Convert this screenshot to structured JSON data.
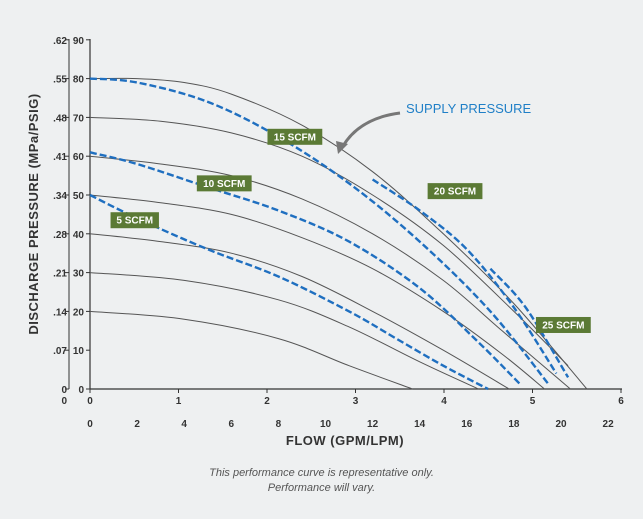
{
  "chart_data": {
    "type": "line",
    "title": "",
    "ylabel": "DISCHARGE PRESSURE (MPa/PSIG)",
    "xlabel": "FLOW (GPM/LPM)",
    "y_psig_ticks": [
      "0",
      "10",
      "20",
      "30",
      "40",
      "50",
      "60",
      "70",
      "80",
      "90"
    ],
    "y_mpa_ticks": [
      "0",
      ".07",
      ".14",
      ".21",
      ".28",
      ".34",
      ".41",
      ".48",
      ".55",
      ".62"
    ],
    "x_gpm_ticks": [
      "0",
      "2",
      "4",
      "6",
      "8",
      "10",
      "12",
      "14",
      "16",
      "18",
      "20",
      "22"
    ],
    "x_lpm_ticks": [
      "0",
      "1",
      "2",
      "3",
      "4",
      "5",
      "6"
    ],
    "xlim_gpm": [
      0,
      23
    ],
    "ylim_psig": [
      0,
      90
    ],
    "grid": false,
    "performance_curves": {
      "color": "#555555",
      "series": [
        {
          "x": [
            0,
            4,
            8,
            11,
            13.7
          ],
          "y": [
            20,
            18,
            13,
            6,
            0
          ]
        },
        {
          "x": [
            0,
            4,
            8,
            11,
            14,
            16.5
          ],
          "y": [
            30,
            28,
            23,
            16,
            7,
            0
          ]
        },
        {
          "x": [
            0,
            3,
            6,
            9,
            12,
            15,
            17.8
          ],
          "y": [
            40,
            38,
            35,
            29,
            20,
            10,
            0
          ]
        },
        {
          "x": [
            0,
            3,
            6,
            9,
            12,
            15,
            17.5,
            19.3
          ],
          "y": [
            50,
            48,
            45,
            39,
            31,
            20,
            9,
            0
          ]
        },
        {
          "x": [
            0,
            3,
            6,
            9,
            12,
            15,
            17.5,
            20.4
          ],
          "y": [
            60,
            58,
            55,
            49,
            40,
            28,
            15,
            0
          ]
        },
        {
          "x": [
            0,
            3,
            6,
            9,
            12,
            15,
            18,
            20.3
          ],
          "y": [
            70,
            69,
            66,
            60,
            50,
            37,
            20,
            6
          ]
        },
        {
          "x": [
            0,
            2,
            4,
            6,
            9,
            12,
            15,
            18,
            21.1
          ],
          "y": [
            80,
            80,
            79,
            76,
            68,
            56,
            40,
            22,
            0
          ]
        }
      ]
    },
    "scfm_curves": {
      "color": "#1f6fc0",
      "series": [
        {
          "name": "5 SCFM",
          "x": [
            0,
            2,
            5,
            8,
            11,
            13,
            15,
            16.9
          ],
          "y": [
            50,
            44,
            36,
            29,
            20,
            13,
            6,
            0
          ]
        },
        {
          "name": "10 SCFM",
          "x": [
            0,
            2,
            5,
            8,
            11,
            14,
            16.5,
            18.3
          ],
          "y": [
            61,
            58,
            52,
            46,
            38,
            26,
            12,
            1
          ]
        },
        {
          "name": "15 SCFM",
          "x": [
            0,
            2,
            5,
            8,
            11,
            14,
            17,
            19.5
          ],
          "y": [
            80,
            79,
            74,
            65,
            53,
            38,
            20,
            1
          ]
        },
        {
          "name": "20 SCFM",
          "x": [
            12,
            14,
            16,
            18,
            19.8
          ],
          "y": [
            54,
            46,
            36,
            21,
            4
          ]
        },
        {
          "name": "25 SCFM",
          "x": [
            17,
            18.5,
            20.3
          ],
          "y": [
            31,
            21,
            3
          ]
        }
      ]
    },
    "badges": [
      {
        "label": "5 SCFM",
        "x": 1.9,
        "y": 43.5
      },
      {
        "label": "10 SCFM",
        "x": 5.7,
        "y": 53
      },
      {
        "label": "15 SCFM",
        "x": 8.7,
        "y": 65
      },
      {
        "label": "20 SCFM",
        "x": 15.5,
        "y": 51
      },
      {
        "label": "25 SCFM",
        "x": 20.1,
        "y": 16.5
      }
    ],
    "annotation": {
      "text": "SUPPLY PRESSURE",
      "x": 13.9,
      "y": 72,
      "arrow_to_x": 10.8,
      "arrow_to_y": 61
    }
  },
  "note": {
    "line1": "This performance curve is representative only.",
    "line2": "Performance will vary."
  },
  "colors": {
    "background": "#eef0f1",
    "badge": "#5b7a35",
    "annotation": "#1f7fc7",
    "axis": "#333333"
  }
}
